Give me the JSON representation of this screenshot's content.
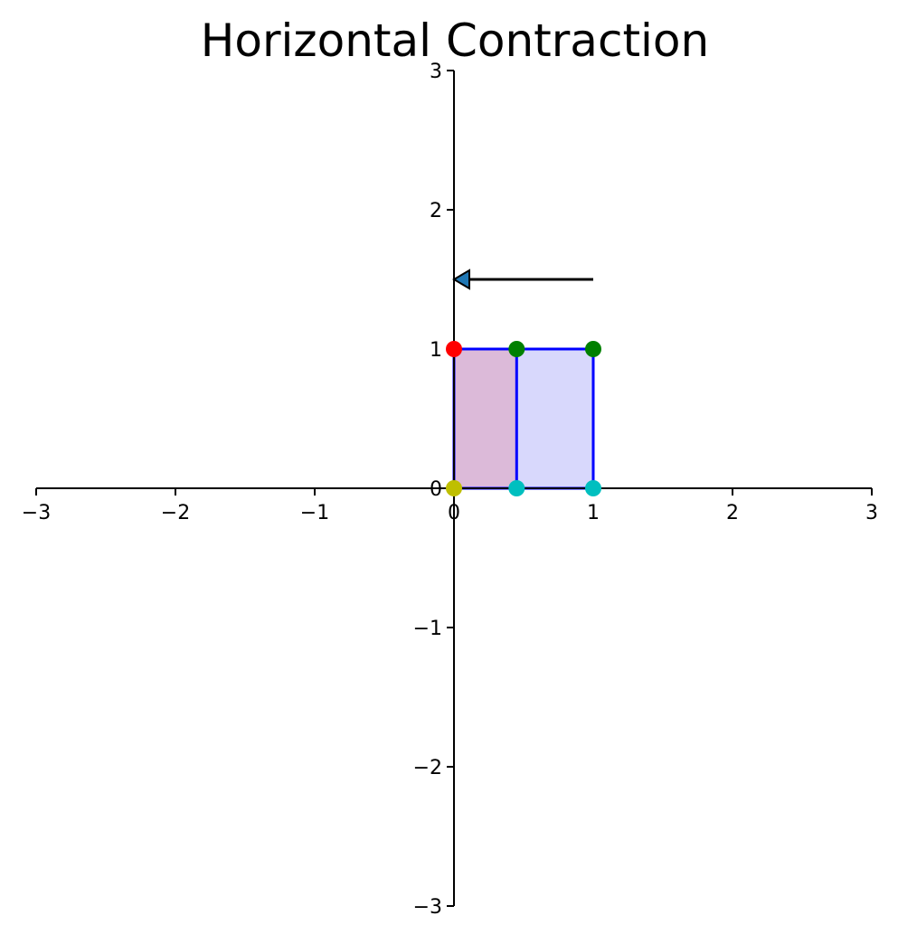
{
  "chart_data": {
    "type": "scatter",
    "title": "Horizontal Contraction",
    "xlabel": "",
    "ylabel": "",
    "xlim": [
      -3,
      3
    ],
    "ylim": [
      -3,
      3
    ],
    "grid": false,
    "axes_style": "spines through origin",
    "x_ticks": [
      -3,
      -2,
      -1,
      0,
      1,
      2,
      3
    ],
    "y_ticks": [
      -3,
      -2,
      -1,
      0,
      1,
      2,
      3
    ],
    "x_tick_labels": [
      "−3",
      "−2",
      "−1",
      "0",
      "1",
      "2",
      "3"
    ],
    "y_tick_labels": [
      "−3",
      "−2",
      "−1",
      "0",
      "1",
      "2",
      "3"
    ],
    "shapes": [
      {
        "kind": "original-unit-square",
        "vertices": [
          [
            0,
            0
          ],
          [
            1,
            0
          ],
          [
            1,
            1
          ],
          [
            0,
            1
          ]
        ],
        "fill": "#d8d8fc",
        "stroke": "#0000ff"
      },
      {
        "kind": "contracted-rectangle",
        "vertices": [
          [
            0,
            0
          ],
          [
            0.45,
            0
          ],
          [
            0.45,
            1
          ],
          [
            0,
            1
          ]
        ],
        "fill": "#dcbad9",
        "stroke": "#0000ff"
      }
    ],
    "points": [
      {
        "x": 0,
        "y": 0,
        "color": "#bfbf00"
      },
      {
        "x": 0,
        "y": 1,
        "color": "#ff0000"
      },
      {
        "x": 0.45,
        "y": 0,
        "color": "#00bfbf"
      },
      {
        "x": 1,
        "y": 0,
        "color": "#00bfbf"
      },
      {
        "x": 0.45,
        "y": 1,
        "color": "#008000"
      },
      {
        "x": 1,
        "y": 1,
        "color": "#008000"
      }
    ],
    "arrow": {
      "from": [
        1,
        1.5
      ],
      "to": [
        0,
        1.5
      ],
      "color": "#000000",
      "head_fill": "#1f77b4"
    }
  }
}
